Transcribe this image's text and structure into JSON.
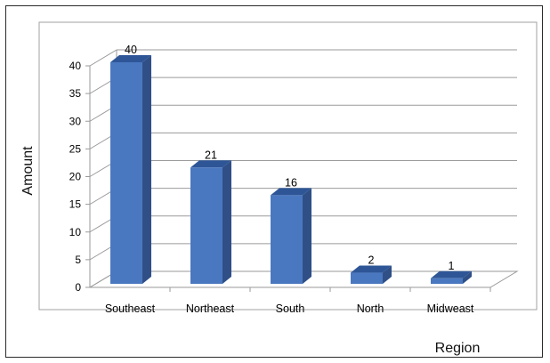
{
  "chart_data": {
    "type": "bar",
    "categories": [
      "Southeast",
      "Northeast",
      "South",
      "North",
      "Midweast"
    ],
    "values": [
      40,
      21,
      16,
      2,
      1
    ],
    "data_labels": [
      "40",
      "21",
      "16",
      "2",
      "1"
    ],
    "title": "",
    "xlabel": "Region",
    "ylabel": "Amount",
    "ylim": [
      0,
      40
    ],
    "yticks": [
      0,
      5,
      10,
      15,
      20,
      25,
      30,
      35,
      40
    ],
    "grid": true,
    "legend": "none",
    "style": "3d-column",
    "colors": {
      "bar_front": "#4a78c0",
      "bar_side": "#2f4f86",
      "bar_top": "#2e5697",
      "grid": "#9a9a9a",
      "wall": "#ffffff",
      "panel_border": "#a0a0a0"
    }
  }
}
